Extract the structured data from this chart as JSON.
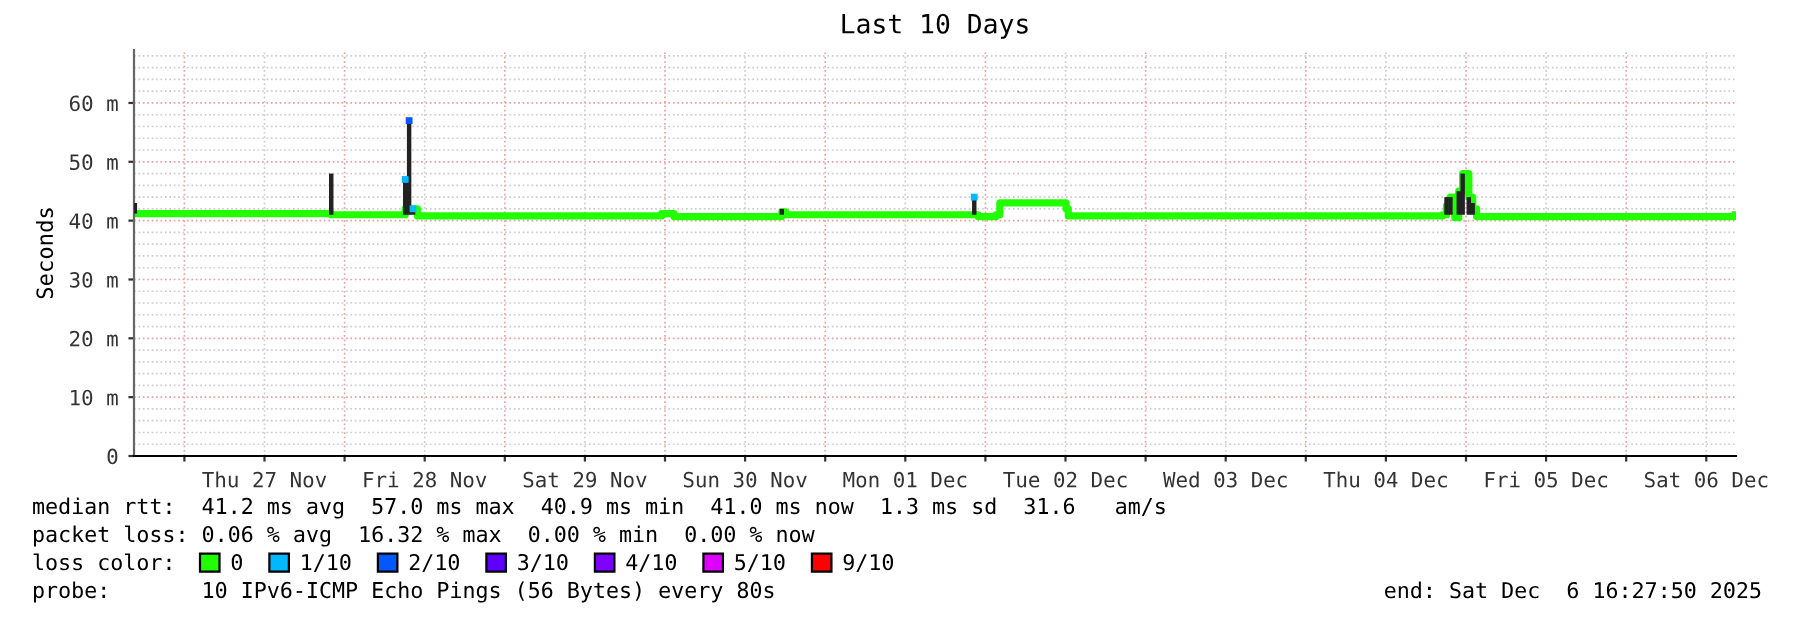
{
  "chart_data": {
    "type": "step",
    "title": "Last 10 Days",
    "ylabel": "Seconds",
    "legend_title": "loss color:",
    "xlim": [
      "2025-11-26T16:27",
      "2025-12-06T16:27"
    ],
    "xticks": [
      {
        "value": "2025-11-27",
        "label": null
      },
      {
        "value": "2025-11-27T12:00",
        "label": "Thu 27 Nov"
      },
      {
        "value": "2025-11-28",
        "label": null
      },
      {
        "value": "2025-11-28T12:00",
        "label": "Fri 28 Nov"
      },
      {
        "value": "2025-11-29",
        "label": null
      },
      {
        "value": "2025-11-29T12:00",
        "label": "Sat 29 Nov"
      },
      {
        "value": "2025-11-30",
        "label": null
      },
      {
        "value": "2025-11-30T12:00",
        "label": "Sun 30 Nov"
      },
      {
        "value": "2025-12-01",
        "label": null
      },
      {
        "value": "2025-12-01T12:00",
        "label": "Mon 01 Dec"
      },
      {
        "value": "2025-12-02",
        "label": null
      },
      {
        "value": "2025-12-02T12:00",
        "label": "Tue 02 Dec"
      },
      {
        "value": "2025-12-03",
        "label": null
      },
      {
        "value": "2025-12-03T12:00",
        "label": "Wed 03 Dec"
      },
      {
        "value": "2025-12-04",
        "label": null
      },
      {
        "value": "2025-12-04T12:00",
        "label": "Thu 04 Dec"
      },
      {
        "value": "2025-12-05",
        "label": null
      },
      {
        "value": "2025-12-05T12:00",
        "label": "Fri 05 Dec"
      },
      {
        "value": "2025-12-06",
        "label": null
      },
      {
        "value": "2025-12-06T12:00",
        "label": "Sat 06 Dec"
      }
    ],
    "ylim": [
      0,
      69
    ],
    "yticks": [
      {
        "value": 0,
        "label": "0"
      },
      {
        "value": 10,
        "label": "10 m"
      },
      {
        "value": 20,
        "label": "20 m"
      },
      {
        "value": 30,
        "label": "30 m"
      },
      {
        "value": 40,
        "label": "40 m"
      },
      {
        "value": 50,
        "label": "50 m"
      },
      {
        "value": 60,
        "label": "60 m"
      }
    ],
    "grid": true,
    "legend": "bottom",
    "series": [
      {
        "name": "0",
        "color": "#22ff00",
        "x": [
          "2025-11-26T16:35",
          "2025-11-27T22:00",
          "2025-11-28T08:30",
          "2025-11-28T09:05",
          "2025-11-28T09:40",
          "2025-11-28T10:15",
          "2025-11-28T10:55",
          "2025-11-29T23:30",
          "2025-11-30T01:20",
          "2025-11-30T17:30",
          "2025-11-30T18:05",
          "2025-12-01T21:40",
          "2025-12-01T22:20",
          "2025-12-01T22:55",
          "2025-12-02T01:35",
          "2025-12-02T02:10",
          "2025-12-02T11:30",
          "2025-12-02T12:05",
          "2025-12-02T12:25",
          "2025-12-04T20:30",
          "2025-12-04T21:05",
          "2025-12-04T21:40",
          "2025-12-04T22:20",
          "2025-12-04T22:55",
          "2025-12-04T23:30",
          "2025-12-05T00:25",
          "2025-12-05T01:00",
          "2025-12-05T01:35",
          "2025-12-06T16:20"
        ],
        "values": [
          41.2,
          41.0,
          41.0,
          42.0,
          42.0,
          42.0,
          40.8,
          41.2,
          40.7,
          41.5,
          41.0,
          41.0,
          41.0,
          40.7,
          41.0,
          43.0,
          43.0,
          42.0,
          40.8,
          41.0,
          42.5,
          44.0,
          40.5,
          45.0,
          48.0,
          44.0,
          42.0,
          40.7,
          41.0
        ],
        "errors": [
          [
            41.2,
            43.0
          ],
          [
            41.0,
            48.0
          ],
          null,
          [
            41.0,
            47.0
          ],
          [
            41.0,
            57.0
          ],
          [
            41.0,
            42.0
          ],
          null,
          null,
          null,
          [
            41.0,
            42.0
          ],
          null,
          null,
          [
            41.0,
            44.0
          ],
          null,
          null,
          null,
          null,
          null,
          null,
          null,
          [
            41.0,
            44.0
          ],
          [
            41.0,
            44.0
          ],
          null,
          [
            41.0,
            45.0
          ],
          [
            41.0,
            48.0
          ],
          [
            41.0,
            44.0
          ],
          [
            41.0,
            43.0
          ],
          null,
          null
        ]
      },
      {
        "name": "1/10",
        "color": "#00b8ff",
        "type": "scatter",
        "x": [
          "2025-11-28T09:05",
          "2025-11-28T10:15",
          "2025-12-01T22:20"
        ],
        "values": [
          47.0,
          42.0,
          44.0
        ]
      },
      {
        "name": "2/10",
        "color": "#0059ff",
        "type": "scatter",
        "x": [
          "2025-11-28T09:40"
        ],
        "values": [
          57.0
        ]
      },
      {
        "name": "3/10",
        "color": "#5e00ff",
        "type": "scatter"
      },
      {
        "name": "4/10",
        "color": "#7e00ff",
        "type": "scatter"
      },
      {
        "name": "5/10",
        "color": "#dd00ff",
        "type": "scatter"
      },
      {
        "name": "9/10",
        "color": "#ff0000",
        "type": "scatter"
      }
    ],
    "annotations": [
      "median rtt:  41.2 ms avg  57.0 ms max  40.9 ms min  41.0 ms now  1.3 ms sd  31.6   am/s",
      "packet loss: 0.06 % avg  16.32 % max  0.00 % min  0.00 % now",
      "probe:       10 IPv6-ICMP Echo Pings (56 Bytes) every 80s",
      "end: Sat Dec  6 16:27:50 2025"
    ]
  }
}
